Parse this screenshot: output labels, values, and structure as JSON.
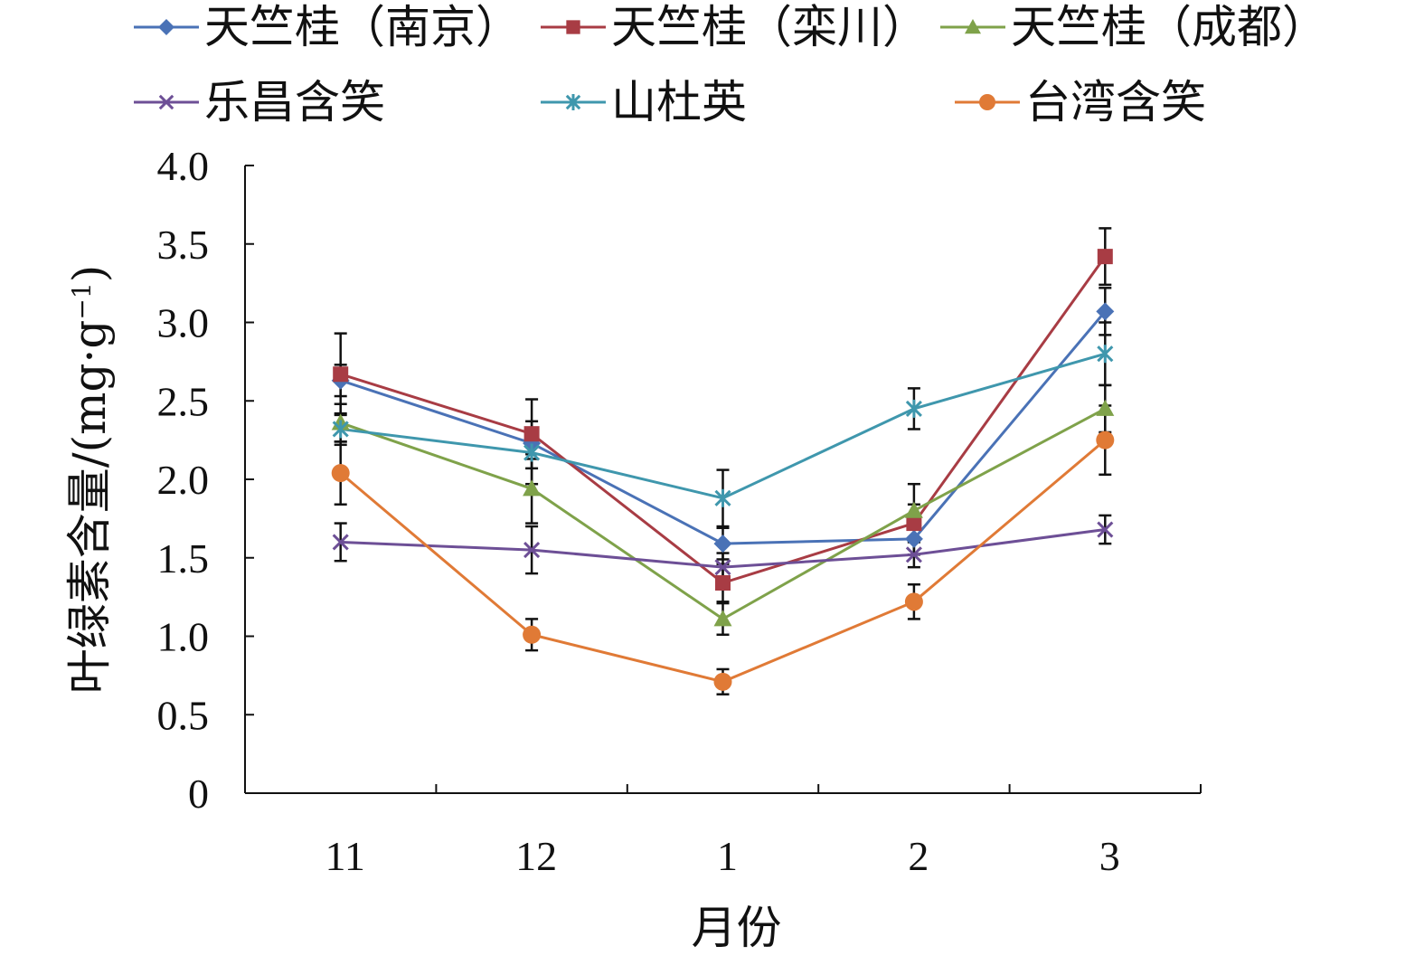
{
  "chart_data": {
    "type": "line",
    "x_tick_labels": [
      "11",
      "12",
      "1",
      "2",
      "3"
    ],
    "y_tick_labels": [
      "0",
      "0.5",
      "1.0",
      "1.5",
      "2.0",
      "2.5",
      "3.0",
      "3.5",
      "4.0"
    ],
    "ylim": [
      0,
      4.0
    ],
    "y_step": 0.5,
    "xlabel": "月份",
    "ylabel": "叶绿素含量/(mg·g",
    "ylabel_sup": "−1",
    "ylabel_close": ")",
    "grid": false,
    "legend_position": "top",
    "series": [
      {
        "name": "天竺桂（南京）",
        "color": "#4a72b6",
        "marker": "diamond",
        "values": [
          2.63,
          2.23,
          1.59,
          1.62,
          3.07
        ],
        "errors": [
          0.1,
          0.1,
          0.1,
          0.1,
          0.15
        ]
      },
      {
        "name": "天竺桂（栾川）",
        "color": "#a83c44",
        "marker": "square",
        "values": [
          2.67,
          2.29,
          1.34,
          1.72,
          3.42
        ],
        "errors": [
          0.26,
          0.22,
          0.12,
          0.12,
          0.18
        ]
      },
      {
        "name": "天竺桂（成都）",
        "color": "#7fa24a",
        "marker": "triangle",
        "values": [
          2.36,
          1.94,
          1.11,
          1.8,
          2.45
        ],
        "errors": [
          0.12,
          0.22,
          0.1,
          0.17,
          0.15
        ]
      },
      {
        "name": "乐昌含笑",
        "color": "#6d4f96",
        "marker": "x",
        "values": [
          1.6,
          1.55,
          1.44,
          1.52,
          1.68
        ],
        "errors": [
          0.12,
          0.15,
          0.09,
          0.08,
          0.09
        ]
      },
      {
        "name": "山杜英",
        "color": "#3f97ad",
        "marker": "asterisk",
        "values": [
          2.32,
          2.17,
          1.88,
          2.45,
          2.8
        ],
        "errors": [
          0.1,
          0.2,
          0.18,
          0.13,
          0.2
        ]
      },
      {
        "name": "台湾含笑",
        "color": "#e07a36",
        "marker": "circle",
        "values": [
          2.04,
          1.01,
          0.71,
          1.22,
          2.25
        ],
        "errors": [
          0.2,
          0.1,
          0.08,
          0.11,
          0.22
        ]
      }
    ]
  }
}
